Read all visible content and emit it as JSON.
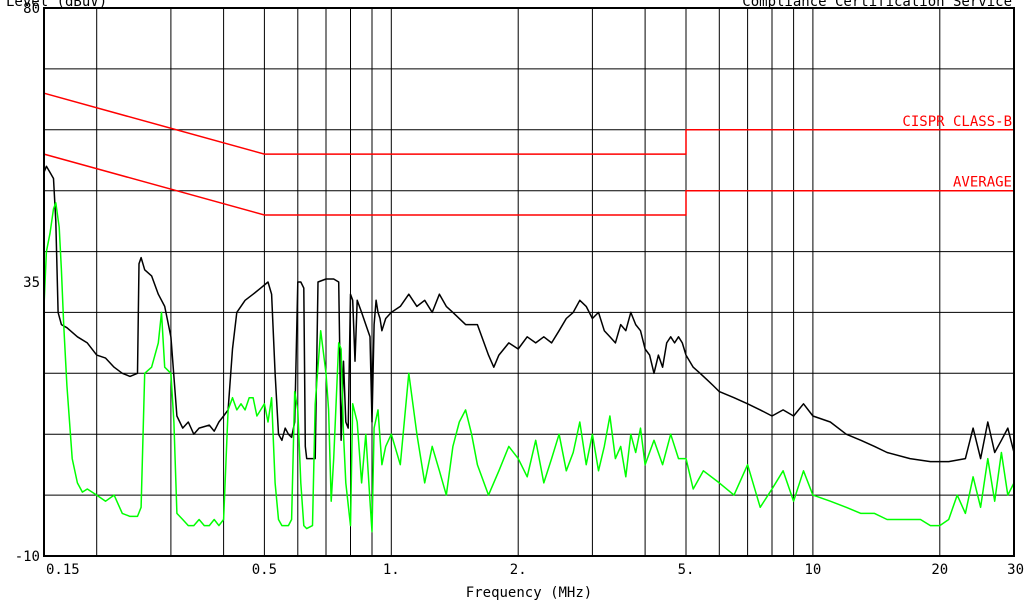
{
  "header": {
    "left_label": "Level (dBuV)",
    "right_label": "Compliance Certification Service"
  },
  "chart_data": {
    "type": "line",
    "title": "",
    "xlabel": "Frequency (MHz)",
    "ylabel": "Level (dBuV)",
    "x_scale": "log",
    "xlim": [
      0.15,
      30
    ],
    "ylim": [
      -10,
      80
    ],
    "grid": true,
    "y_ticks": [
      {
        "value": 80,
        "label": "80"
      },
      {
        "value": 35,
        "label": "35"
      },
      {
        "value": -10,
        "label": "-10"
      }
    ],
    "x_ticks": [
      {
        "value": 0.15,
        "label": "0.15"
      },
      {
        "value": 0.5,
        "label": "0.5"
      },
      {
        "value": 1,
        "label": "1."
      },
      {
        "value": 2,
        "label": "2."
      },
      {
        "value": 5,
        "label": "5."
      },
      {
        "value": 10,
        "label": "10"
      },
      {
        "value": 20,
        "label": "20"
      },
      {
        "value": 30,
        "label": "30"
      }
    ],
    "x_grid_lines": [
      0.15,
      0.2,
      0.3,
      0.4,
      0.5,
      0.6,
      0.7,
      0.8,
      0.9,
      1,
      2,
      3,
      4,
      5,
      6,
      7,
      8,
      9,
      10,
      20,
      30
    ],
    "y_grid_lines": [
      -10,
      0,
      10,
      20,
      30,
      40,
      50,
      60,
      70,
      80
    ],
    "limit_lines": [
      {
        "name": "CISPR CLASS-B",
        "color": "#ff0000",
        "points": [
          [
            0.15,
            66
          ],
          [
            0.5,
            56
          ],
          [
            5,
            56
          ],
          [
            5,
            60
          ],
          [
            30,
            60
          ]
        ]
      },
      {
        "name": "AVERAGE",
        "color": "#ff0000",
        "points": [
          [
            0.15,
            56
          ],
          [
            0.5,
            46
          ],
          [
            5,
            46
          ],
          [
            5,
            50
          ],
          [
            30,
            50
          ]
        ]
      }
    ],
    "series": [
      {
        "color": "#000000",
        "points": [
          [
            0.15,
            53
          ],
          [
            0.152,
            54
          ],
          [
            0.155,
            53
          ],
          [
            0.158,
            52
          ],
          [
            0.16,
            45
          ],
          [
            0.162,
            30
          ],
          [
            0.165,
            28
          ],
          [
            0.17,
            27.5
          ],
          [
            0.18,
            26
          ],
          [
            0.19,
            25
          ],
          [
            0.2,
            23
          ],
          [
            0.21,
            22.5
          ],
          [
            0.22,
            21
          ],
          [
            0.23,
            20
          ],
          [
            0.24,
            19.5
          ],
          [
            0.25,
            20
          ],
          [
            0.252,
            38
          ],
          [
            0.255,
            39
          ],
          [
            0.26,
            37
          ],
          [
            0.27,
            36
          ],
          [
            0.28,
            33
          ],
          [
            0.29,
            31
          ],
          [
            0.3,
            26
          ],
          [
            0.31,
            13
          ],
          [
            0.32,
            11
          ],
          [
            0.33,
            12
          ],
          [
            0.34,
            10
          ],
          [
            0.35,
            11
          ],
          [
            0.37,
            11.5
          ],
          [
            0.38,
            10.5
          ],
          [
            0.39,
            12
          ],
          [
            0.4,
            13
          ],
          [
            0.41,
            14
          ],
          [
            0.42,
            24
          ],
          [
            0.43,
            30
          ],
          [
            0.45,
            32
          ],
          [
            0.47,
            33
          ],
          [
            0.49,
            34
          ],
          [
            0.5,
            34.5
          ],
          [
            0.51,
            35
          ],
          [
            0.52,
            33
          ],
          [
            0.53,
            20
          ],
          [
            0.54,
            10
          ],
          [
            0.55,
            9
          ],
          [
            0.56,
            11
          ],
          [
            0.57,
            10
          ],
          [
            0.58,
            9.5
          ],
          [
            0.59,
            12
          ],
          [
            0.6,
            35
          ],
          [
            0.61,
            35
          ],
          [
            0.62,
            34
          ],
          [
            0.625,
            8
          ],
          [
            0.63,
            6
          ],
          [
            0.66,
            6
          ],
          [
            0.67,
            35
          ],
          [
            0.7,
            35.5
          ],
          [
            0.73,
            35.5
          ],
          [
            0.75,
            35
          ],
          [
            0.76,
            9
          ],
          [
            0.77,
            22
          ],
          [
            0.78,
            12
          ],
          [
            0.79,
            11
          ],
          [
            0.8,
            33
          ],
          [
            0.81,
            32
          ],
          [
            0.82,
            22
          ],
          [
            0.83,
            32
          ],
          [
            0.85,
            30
          ],
          [
            0.87,
            28
          ],
          [
            0.89,
            26
          ],
          [
            0.9,
            12
          ],
          [
            0.91,
            28
          ],
          [
            0.92,
            32
          ],
          [
            0.93,
            30
          ],
          [
            0.94,
            29
          ],
          [
            0.95,
            27
          ],
          [
            0.97,
            29
          ],
          [
            1.0,
            30
          ],
          [
            1.05,
            31
          ],
          [
            1.1,
            33
          ],
          [
            1.15,
            31
          ],
          [
            1.2,
            32
          ],
          [
            1.25,
            30
          ],
          [
            1.3,
            33
          ],
          [
            1.35,
            31
          ],
          [
            1.4,
            30
          ],
          [
            1.5,
            28
          ],
          [
            1.6,
            28
          ],
          [
            1.7,
            23
          ],
          [
            1.75,
            21
          ],
          [
            1.8,
            23
          ],
          [
            1.9,
            25
          ],
          [
            2.0,
            24
          ],
          [
            2.1,
            26
          ],
          [
            2.2,
            25
          ],
          [
            2.3,
            26
          ],
          [
            2.4,
            25
          ],
          [
            2.5,
            27
          ],
          [
            2.6,
            29
          ],
          [
            2.7,
            30
          ],
          [
            2.8,
            32
          ],
          [
            2.9,
            31
          ],
          [
            3.0,
            29
          ],
          [
            3.1,
            30
          ],
          [
            3.2,
            27
          ],
          [
            3.3,
            26
          ],
          [
            3.4,
            25
          ],
          [
            3.5,
            28
          ],
          [
            3.6,
            27
          ],
          [
            3.7,
            30
          ],
          [
            3.8,
            28
          ],
          [
            3.9,
            27
          ],
          [
            4.0,
            24
          ],
          [
            4.1,
            23
          ],
          [
            4.2,
            20
          ],
          [
            4.3,
            23
          ],
          [
            4.4,
            21
          ],
          [
            4.5,
            25
          ],
          [
            4.6,
            26
          ],
          [
            4.7,
            25
          ],
          [
            4.8,
            26
          ],
          [
            4.9,
            25
          ],
          [
            5.0,
            23
          ],
          [
            5.2,
            21
          ],
          [
            5.4,
            20
          ],
          [
            5.6,
            19
          ],
          [
            5.8,
            18
          ],
          [
            6.0,
            17
          ],
          [
            6.5,
            16
          ],
          [
            7.0,
            15
          ],
          [
            7.5,
            14
          ],
          [
            8.0,
            13
          ],
          [
            8.5,
            14
          ],
          [
            9.0,
            13
          ],
          [
            9.5,
            15
          ],
          [
            10.0,
            13
          ],
          [
            11,
            12
          ],
          [
            12,
            10
          ],
          [
            13,
            9
          ],
          [
            14,
            8
          ],
          [
            15,
            7
          ],
          [
            17,
            6
          ],
          [
            19,
            5.5
          ],
          [
            21,
            5.5
          ],
          [
            23,
            6
          ],
          [
            24,
            11
          ],
          [
            25,
            6
          ],
          [
            26,
            12
          ],
          [
            27,
            7
          ],
          [
            28,
            9
          ],
          [
            29,
            11
          ],
          [
            30,
            7
          ]
        ]
      },
      {
        "color": "#00ff00",
        "points": [
          [
            0.15,
            31
          ],
          [
            0.152,
            40
          ],
          [
            0.155,
            43
          ],
          [
            0.158,
            47
          ],
          [
            0.16,
            48
          ],
          [
            0.163,
            44
          ],
          [
            0.165,
            37
          ],
          [
            0.167,
            28
          ],
          [
            0.17,
            18
          ],
          [
            0.175,
            6
          ],
          [
            0.18,
            2
          ],
          [
            0.185,
            0.5
          ],
          [
            0.19,
            1
          ],
          [
            0.2,
            0
          ],
          [
            0.21,
            -1
          ],
          [
            0.22,
            0
          ],
          [
            0.23,
            -3
          ],
          [
            0.24,
            -3.5
          ],
          [
            0.25,
            -3.5
          ],
          [
            0.255,
            -2
          ],
          [
            0.26,
            20
          ],
          [
            0.27,
            21
          ],
          [
            0.28,
            25
          ],
          [
            0.285,
            30
          ],
          [
            0.29,
            21
          ],
          [
            0.3,
            20
          ],
          [
            0.305,
            12
          ],
          [
            0.31,
            -3
          ],
          [
            0.32,
            -4
          ],
          [
            0.33,
            -5
          ],
          [
            0.34,
            -5
          ],
          [
            0.35,
            -4
          ],
          [
            0.36,
            -5
          ],
          [
            0.37,
            -5
          ],
          [
            0.38,
            -4
          ],
          [
            0.39,
            -5
          ],
          [
            0.4,
            -4
          ],
          [
            0.41,
            14
          ],
          [
            0.42,
            16
          ],
          [
            0.43,
            14
          ],
          [
            0.44,
            15
          ],
          [
            0.45,
            14
          ],
          [
            0.46,
            16
          ],
          [
            0.47,
            16
          ],
          [
            0.48,
            13
          ],
          [
            0.49,
            14
          ],
          [
            0.5,
            15
          ],
          [
            0.51,
            12
          ],
          [
            0.52,
            16
          ],
          [
            0.53,
            2
          ],
          [
            0.54,
            -4
          ],
          [
            0.55,
            -5
          ],
          [
            0.57,
            -5
          ],
          [
            0.58,
            -4
          ],
          [
            0.59,
            17
          ],
          [
            0.6,
            14
          ],
          [
            0.61,
            2
          ],
          [
            0.62,
            -5
          ],
          [
            0.63,
            -5.5
          ],
          [
            0.65,
            -5
          ],
          [
            0.66,
            15
          ],
          [
            0.68,
            27
          ],
          [
            0.7,
            20
          ],
          [
            0.71,
            14
          ],
          [
            0.72,
            -1
          ],
          [
            0.73,
            6
          ],
          [
            0.75,
            25
          ],
          [
            0.76,
            24
          ],
          [
            0.77,
            10
          ],
          [
            0.78,
            2
          ],
          [
            0.8,
            -5
          ],
          [
            0.81,
            15
          ],
          [
            0.83,
            12
          ],
          [
            0.85,
            2
          ],
          [
            0.87,
            10
          ],
          [
            0.89,
            -1
          ],
          [
            0.9,
            -6
          ],
          [
            0.91,
            11
          ],
          [
            0.93,
            14
          ],
          [
            0.95,
            5
          ],
          [
            0.97,
            8
          ],
          [
            1.0,
            10
          ],
          [
            1.05,
            5
          ],
          [
            1.1,
            20
          ],
          [
            1.15,
            10
          ],
          [
            1.2,
            2
          ],
          [
            1.25,
            8
          ],
          [
            1.3,
            4
          ],
          [
            1.35,
            0
          ],
          [
            1.4,
            8
          ],
          [
            1.45,
            12
          ],
          [
            1.5,
            14
          ],
          [
            1.55,
            10
          ],
          [
            1.6,
            5
          ],
          [
            1.7,
            0
          ],
          [
            1.8,
            4
          ],
          [
            1.9,
            8
          ],
          [
            2.0,
            6
          ],
          [
            2.1,
            3
          ],
          [
            2.2,
            9
          ],
          [
            2.3,
            2
          ],
          [
            2.4,
            6
          ],
          [
            2.5,
            10
          ],
          [
            2.6,
            4
          ],
          [
            2.7,
            7
          ],
          [
            2.8,
            12
          ],
          [
            2.9,
            5
          ],
          [
            3.0,
            10
          ],
          [
            3.1,
            4
          ],
          [
            3.2,
            8
          ],
          [
            3.3,
            13
          ],
          [
            3.4,
            6
          ],
          [
            3.5,
            8
          ],
          [
            3.6,
            3
          ],
          [
            3.7,
            10
          ],
          [
            3.8,
            7
          ],
          [
            3.9,
            11
          ],
          [
            4.0,
            5
          ],
          [
            4.2,
            9
          ],
          [
            4.4,
            5
          ],
          [
            4.6,
            10
          ],
          [
            4.8,
            6
          ],
          [
            5.0,
            6
          ],
          [
            5.2,
            1
          ],
          [
            5.5,
            4
          ],
          [
            6.0,
            2
          ],
          [
            6.5,
            0
          ],
          [
            7.0,
            5
          ],
          [
            7.5,
            -2
          ],
          [
            8.0,
            1
          ],
          [
            8.5,
            4
          ],
          [
            9.0,
            -1
          ],
          [
            9.5,
            4
          ],
          [
            10,
            0
          ],
          [
            11,
            -1
          ],
          [
            12,
            -2
          ],
          [
            13,
            -3
          ],
          [
            14,
            -3
          ],
          [
            15,
            -4
          ],
          [
            16,
            -4
          ],
          [
            17,
            -4
          ],
          [
            18,
            -4
          ],
          [
            19,
            -5
          ],
          [
            20,
            -5
          ],
          [
            21,
            -4
          ],
          [
            22,
            0
          ],
          [
            23,
            -3
          ],
          [
            24,
            3
          ],
          [
            25,
            -2
          ],
          [
            26,
            6
          ],
          [
            27,
            -1
          ],
          [
            28,
            7
          ],
          [
            29,
            0
          ],
          [
            30,
            2
          ]
        ]
      }
    ]
  }
}
